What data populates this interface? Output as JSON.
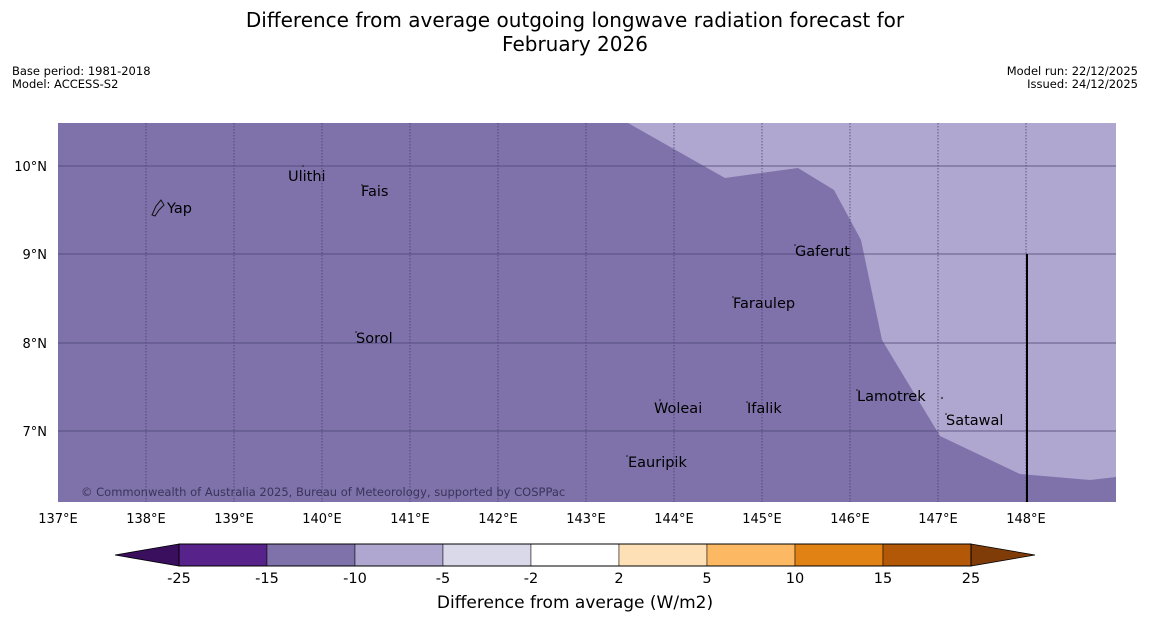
{
  "title": {
    "line1": "Difference from average outgoing longwave radiation forecast for",
    "line2": "February 2026"
  },
  "meta": {
    "base_period": "Base period: 1981-2018",
    "model": "Model: ACCESS-S2",
    "model_run": "Model run: 22/12/2025",
    "issued": "Issued: 24/12/2025"
  },
  "map": {
    "lon_labels": [
      "137°E",
      "138°E",
      "139°E",
      "140°E",
      "141°E",
      "142°E",
      "143°E",
      "144°E",
      "145°E",
      "146°E",
      "147°E",
      "148°E"
    ],
    "lat_labels": [
      "10°N",
      "9°N",
      "8°N",
      "7°N"
    ],
    "places": [
      {
        "name": "Yap"
      },
      {
        "name": "Ulithi"
      },
      {
        "name": "Fais"
      },
      {
        "name": "Gaferut"
      },
      {
        "name": "Faraulep"
      },
      {
        "name": "Sorol"
      },
      {
        "name": "Lamotrek"
      },
      {
        "name": "Woleai"
      },
      {
        "name": "Ifalik"
      },
      {
        "name": "Satawal"
      },
      {
        "name": "Eauripik"
      }
    ],
    "copyright": "© Commonwealth of Australia 2025, Bureau of Meteorology, supported by COSPPac",
    "fill_colors": {
      "below_minus_15": "#7f72ab",
      "below_minus_10": "#afa7d0"
    }
  },
  "colorbar": {
    "ticks": [
      "-25",
      "-15",
      "-10",
      "-5",
      "-2",
      "2",
      "5",
      "10",
      "15",
      "25"
    ],
    "colors": [
      "#3a0f5e",
      "#57228a",
      "#7f72ab",
      "#afa7d0",
      "#d9d9ea",
      "#ffffff",
      "#fee0b6",
      "#fdb863",
      "#e08214",
      "#b35806",
      "#7f3b08"
    ],
    "label": "Difference from average (W/m2)"
  }
}
